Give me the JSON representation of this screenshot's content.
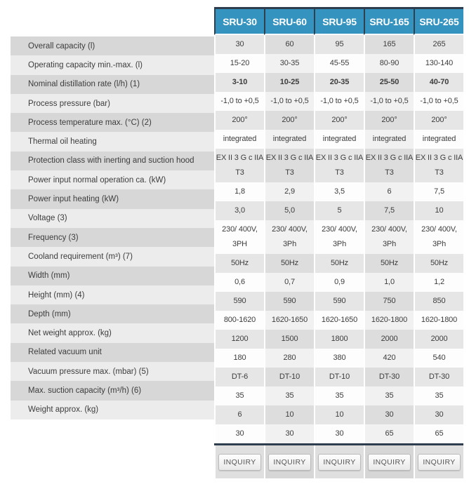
{
  "table": {
    "columns": [
      "SRU-30",
      "SRU-60",
      "SRU-95",
      "SRU-165",
      "SRU-265"
    ],
    "row_labels": [
      "Overall capacity (l)",
      "Operating capacity min.-max. (l)",
      "Nominal distillation rate (l/h) (1)",
      "Process pressure (bar)",
      "Process temperature max. (°C) (2)",
      "Thermal oil heating",
      "Protection class with inerting and suction hood",
      "Power input normal operation ca. (kW)",
      "Power input heating (kW)",
      "Voltage (3)",
      "Frequency (3)",
      "Cooland requirement (m³) (7)",
      "Width (mm)",
      "Height (mm) (4)",
      "Depth (mm)",
      "Net weight approx. (kg)",
      "Related vacuum unit",
      "Vacuum pressure max. (mbar) (5)",
      "Max. suction capacity (m³/h) (6)",
      "Weight approx. (kg)"
    ],
    "rows": [
      {
        "bold": false,
        "values": [
          "30",
          "60",
          "95",
          "165",
          "265"
        ]
      },
      {
        "bold": false,
        "values": [
          "15-20",
          "30-35",
          "45-55",
          "80-90",
          "130-140"
        ]
      },
      {
        "bold": true,
        "values": [
          "3-10",
          "10-25",
          "20-35",
          "25-50",
          "40-70"
        ]
      },
      {
        "bold": false,
        "values": [
          "-1,0 to +0,5",
          "-1,0 to +0,5",
          "-1,0 to +0,5",
          "-1,0 to +0,5",
          "-1,0 to +0,5"
        ]
      },
      {
        "bold": false,
        "values": [
          "200°",
          "200°",
          "200°",
          "200°",
          "200°"
        ]
      },
      {
        "bold": false,
        "values": [
          "integrated",
          "integrated",
          "integrated",
          "integrated",
          "integrated"
        ]
      },
      {
        "bold": false,
        "values": [
          [
            "EX II 3 G c IIA",
            "T3"
          ],
          [
            "EX II 3 G c IIA",
            "T3"
          ],
          [
            "EX II 3 G c IIA",
            "T3"
          ],
          [
            "EX II 3 G c IIA",
            "T3"
          ],
          [
            "EX II 3 G c IIA",
            "T3"
          ]
        ]
      },
      {
        "bold": false,
        "values": [
          "1,8",
          "2,9",
          "3,5",
          "6",
          "7,5"
        ]
      },
      {
        "bold": false,
        "values": [
          "3,0",
          "5,0",
          "5",
          "7,5",
          "10"
        ]
      },
      {
        "bold": false,
        "values": [
          [
            "230/ 400V,",
            "3PH"
          ],
          [
            "230/ 400V,",
            "3Ph"
          ],
          [
            "230/ 400V,",
            "3Ph"
          ],
          [
            "230/ 400V,",
            "3Ph"
          ],
          [
            "230/ 400V,",
            "3Ph"
          ]
        ]
      },
      {
        "bold": false,
        "values": [
          "50Hz",
          "50Hz",
          "50Hz",
          "50Hz",
          "50Hz"
        ]
      },
      {
        "bold": false,
        "values": [
          "0,6",
          "0,7",
          "0,9",
          "1,0",
          "1,2"
        ]
      },
      {
        "bold": false,
        "values": [
          "590",
          "590",
          "590",
          "750",
          "850"
        ]
      },
      {
        "bold": false,
        "values": [
          "800-1620",
          "1620-1650",
          "1620-1650",
          "1620-1800",
          "1620-1800"
        ]
      },
      {
        "bold": false,
        "values": [
          "1200",
          "1500",
          "1800",
          "2000",
          "2000"
        ]
      },
      {
        "bold": false,
        "values": [
          "180",
          "280",
          "380",
          "420",
          "540"
        ]
      },
      {
        "bold": false,
        "values": [
          "DT-6",
          "DT-10",
          "DT-10",
          "DT-30",
          "DT-30"
        ]
      },
      {
        "bold": false,
        "values": [
          "35",
          "35",
          "35",
          "35",
          "35"
        ]
      },
      {
        "bold": false,
        "values": [
          "6",
          "10",
          "10",
          "30",
          "30"
        ]
      },
      {
        "bold": false,
        "values": [
          "30",
          "30",
          "30",
          "65",
          "65"
        ]
      }
    ],
    "inquiry_label": "INQUIRY"
  },
  "colors": {
    "header_blue": "#3593bf",
    "dark_navy": "#2e3e4e",
    "label_row_dark": "#d7d7d7",
    "label_row_light": "#ececec",
    "data_gray": "#e6e6e6",
    "data_gray_alt": "#dddddd",
    "data_white": "#fdfdfd",
    "data_white_alt": "#f1f1f1",
    "text": "#3d3d3d"
  }
}
